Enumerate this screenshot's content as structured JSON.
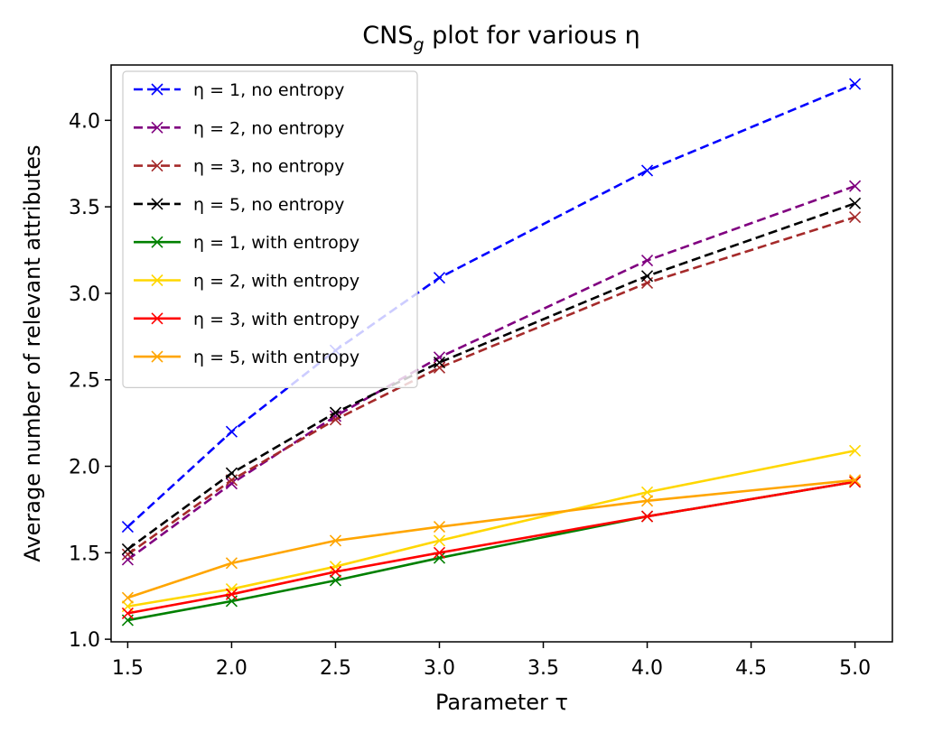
{
  "chart_data": {
    "type": "line",
    "title": "CNS",
    "title_sub": "g",
    "title_suffix": " plot for various η",
    "xlabel": "Parameter τ",
    "ylabel": "Average number of relevant attributes",
    "xlim": [
      1.42,
      5.18
    ],
    "ylim": [
      0.985,
      4.32
    ],
    "x_ticks": [
      1.5,
      2.0,
      2.5,
      3.0,
      3.5,
      4.0,
      4.5,
      5.0
    ],
    "x_tick_labels": [
      "1.5",
      "2.0",
      "2.5",
      "3.0",
      "3.5",
      "4.0",
      "4.5",
      "5.0"
    ],
    "y_ticks": [
      1.0,
      1.5,
      2.0,
      2.5,
      3.0,
      3.5,
      4.0
    ],
    "y_tick_labels": [
      "1.0",
      "1.5",
      "2.0",
      "2.5",
      "3.0",
      "3.5",
      "4.0"
    ],
    "grid": false,
    "legend_position": "upper-left",
    "x": [
      1.5,
      2.0,
      2.5,
      3.0,
      4.0,
      5.0
    ],
    "series": [
      {
        "name": "η = 1,  no entropy",
        "color": "#0000ff",
        "dashed": true,
        "marker": "x",
        "values": [
          1.65,
          2.2,
          2.67,
          3.09,
          3.71,
          4.21
        ]
      },
      {
        "name": "η = 2,  no entropy",
        "color": "#800080",
        "dashed": true,
        "marker": "x",
        "values": [
          1.46,
          1.9,
          2.29,
          2.63,
          3.19,
          3.62
        ]
      },
      {
        "name": "η = 3,  no entropy",
        "color": "#a52a2a",
        "dashed": true,
        "marker": "x",
        "values": [
          1.49,
          1.92,
          2.27,
          2.57,
          3.06,
          3.44
        ]
      },
      {
        "name": "η = 5,  no entropy",
        "color": "#000000",
        "dashed": true,
        "marker": "x",
        "values": [
          1.52,
          1.96,
          2.31,
          2.6,
          3.1,
          3.52
        ]
      },
      {
        "name": "η = 1,  with entropy",
        "color": "#008000",
        "dashed": false,
        "marker": "x",
        "values": [
          1.11,
          1.22,
          1.34,
          1.47,
          1.71,
          1.91
        ]
      },
      {
        "name": "η = 2,  with entropy",
        "color": "#ffd700",
        "dashed": false,
        "marker": "x",
        "values": [
          1.19,
          1.29,
          1.42,
          1.57,
          1.85,
          2.09
        ]
      },
      {
        "name": "η = 3,  with entropy",
        "color": "#ff0000",
        "dashed": false,
        "marker": "x",
        "values": [
          1.15,
          1.26,
          1.39,
          1.5,
          1.71,
          1.91
        ]
      },
      {
        "name": "η = 5,  with entropy",
        "color": "#ffa500",
        "dashed": false,
        "marker": "x",
        "values": [
          1.24,
          1.44,
          1.57,
          1.65,
          1.8,
          1.92
        ]
      }
    ]
  }
}
